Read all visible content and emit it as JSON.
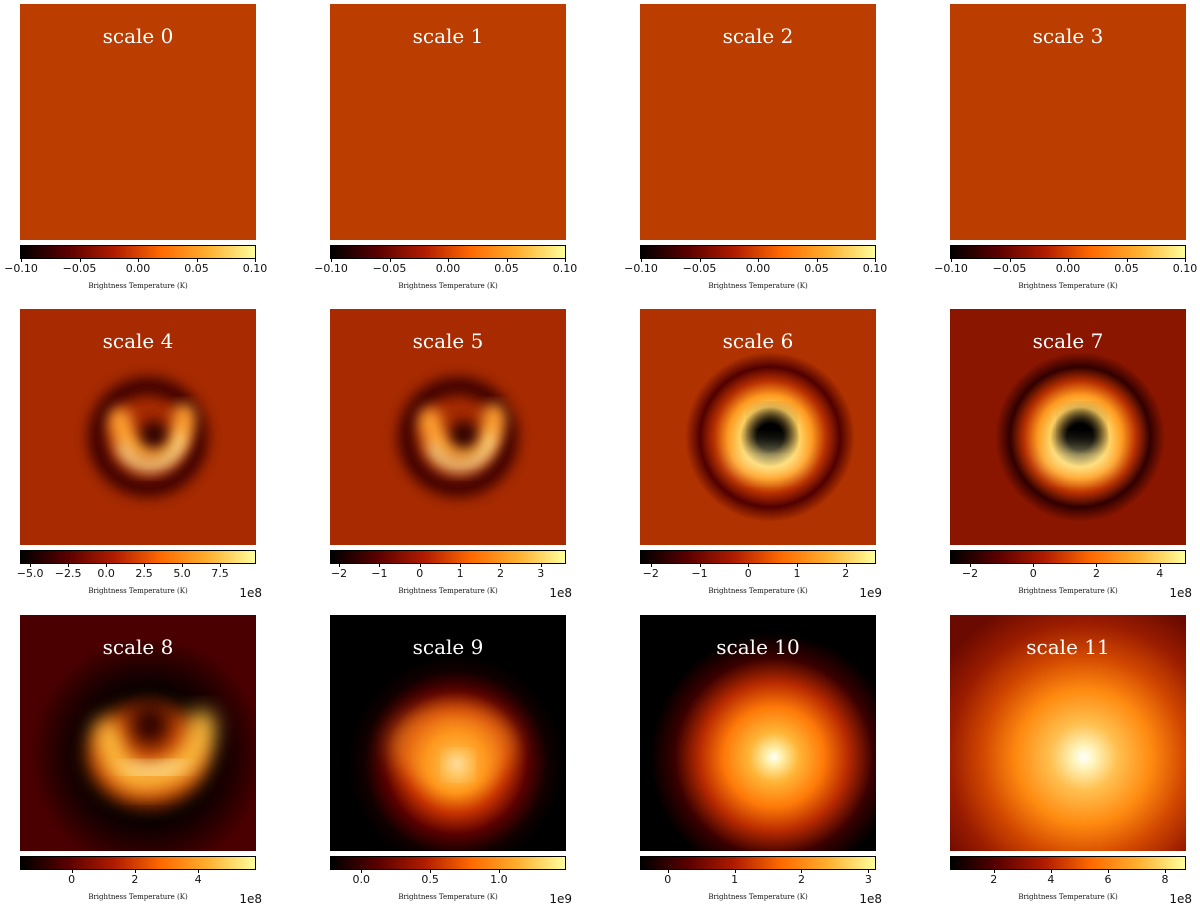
{
  "colormap": [
    "#000000",
    "#5a0000",
    "#b01c00",
    "#ff6a00",
    "#ffb030",
    "#ffff9c"
  ],
  "chart_data": [
    {
      "type": "heatmap",
      "title": "scale 0",
      "colorbar_label": "Brightness Temperature (K)",
      "clim": [
        -0.1,
        0.1
      ],
      "ticks": [
        "−0.10",
        "−0.05",
        "0.00",
        "0.05",
        "0.10"
      ],
      "tick_values": [
        -0.1,
        -0.05,
        0.0,
        0.05,
        0.1
      ],
      "exponent": "",
      "image": "uniform",
      "uniform_value": 0.0
    },
    {
      "type": "heatmap",
      "title": "scale 1",
      "colorbar_label": "Brightness Temperature (K)",
      "clim": [
        -0.1,
        0.1
      ],
      "ticks": [
        "−0.10",
        "−0.05",
        "0.00",
        "0.05",
        "0.10"
      ],
      "tick_values": [
        -0.1,
        -0.05,
        0.0,
        0.05,
        0.1
      ],
      "exponent": "",
      "image": "uniform",
      "uniform_value": 0.0
    },
    {
      "type": "heatmap",
      "title": "scale 2",
      "colorbar_label": "Brightness Temperature (K)",
      "clim": [
        -0.1,
        0.1
      ],
      "ticks": [
        "−0.10",
        "−0.05",
        "0.00",
        "0.05",
        "0.10"
      ],
      "tick_values": [
        -0.1,
        -0.05,
        0.0,
        0.05,
        0.1
      ],
      "exponent": "",
      "image": "uniform",
      "uniform_value": 0.0
    },
    {
      "type": "heatmap",
      "title": "scale 3",
      "colorbar_label": "Brightness Temperature (K)",
      "clim": [
        -0.1,
        0.1
      ],
      "ticks": [
        "−0.10",
        "−0.05",
        "0.00",
        "0.05",
        "0.10"
      ],
      "tick_values": [
        -0.1,
        -0.05,
        0.0,
        0.05,
        0.1
      ],
      "exponent": "",
      "image": "uniform",
      "uniform_value": 0.0
    },
    {
      "type": "heatmap",
      "title": "scale 4",
      "colorbar_label": "Brightness Temperature (K)",
      "clim": [
        -5.6,
        9.8
      ],
      "ticks": [
        "−5.0",
        "−2.5",
        "0.0",
        "2.5",
        "5.0",
        "7.5"
      ],
      "tick_values": [
        -5.0,
        -2.5,
        0.0,
        2.5,
        5.0,
        7.5
      ],
      "exponent": "1e8",
      "image": "ring"
    },
    {
      "type": "heatmap",
      "title": "scale 5",
      "colorbar_label": "Brightness Temperature (K)",
      "clim": [
        -2.2,
        3.6
      ],
      "ticks": [
        "−2",
        "−1",
        "0",
        "1",
        "2",
        "3"
      ],
      "tick_values": [
        -2,
        -1,
        0,
        1,
        2,
        3
      ],
      "exponent": "1e8",
      "image": "ring"
    },
    {
      "type": "heatmap",
      "title": "scale 6",
      "colorbar_label": "Brightness Temperature (K)",
      "clim": [
        -2.2,
        2.6
      ],
      "ticks": [
        "−2",
        "−1",
        "0",
        "1",
        "2"
      ],
      "tick_values": [
        -2,
        -1,
        0,
        1,
        2
      ],
      "exponent": "1e9",
      "image": "donut"
    },
    {
      "type": "heatmap",
      "title": "scale 7",
      "colorbar_label": "Brightness Temperature (K)",
      "clim": [
        -2.6,
        4.8
      ],
      "ticks": [
        "−2",
        "0",
        "2",
        "4"
      ],
      "tick_values": [
        -2,
        0,
        2,
        4
      ],
      "exponent": "1e8",
      "image": "donut-dark"
    },
    {
      "type": "heatmap",
      "title": "scale 8",
      "colorbar_label": "Brightness Temperature (K)",
      "clim": [
        -1.6,
        5.8
      ],
      "ticks": [
        "0",
        "2",
        "4"
      ],
      "tick_values": [
        0,
        2,
        4
      ],
      "exponent": "1e8",
      "image": "crescent"
    },
    {
      "type": "heatmap",
      "title": "scale 9",
      "colorbar_label": "Brightness Temperature (K)",
      "clim": [
        -0.22,
        1.48
      ],
      "ticks": [
        "0.0",
        "0.5",
        "1.0"
      ],
      "tick_values": [
        0.0,
        0.5,
        1.0
      ],
      "exponent": "1e9",
      "image": "blob"
    },
    {
      "type": "heatmap",
      "title": "scale 10",
      "colorbar_label": "Brightness Temperature (K)",
      "clim": [
        -0.4,
        3.1
      ],
      "ticks": [
        "0",
        "1",
        "2",
        "3"
      ],
      "tick_values": [
        0,
        1,
        2,
        3
      ],
      "exponent": "1e8",
      "image": "glow"
    },
    {
      "type": "heatmap",
      "title": "scale 11",
      "colorbar_label": "Brightness Temperature (K)",
      "clim": [
        0.5,
        8.7
      ],
      "ticks": [
        "2",
        "4",
        "6",
        "8"
      ],
      "tick_values": [
        2,
        4,
        6,
        8
      ],
      "exponent": "1e8",
      "image": "glow-wide"
    }
  ]
}
